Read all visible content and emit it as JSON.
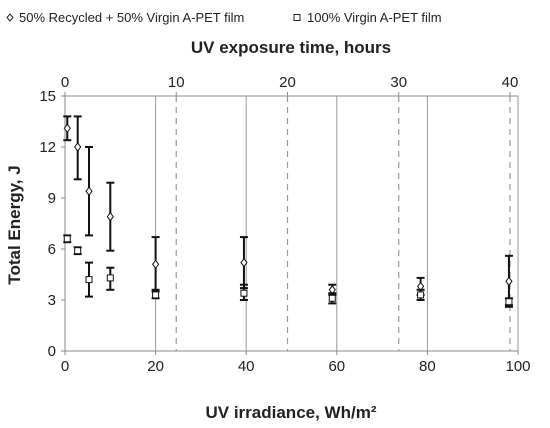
{
  "chart_data": {
    "type": "scatter",
    "title": "",
    "xlabel": "UV irradiance, Wh/m²",
    "x2label": "UV exposure time, hours",
    "ylabel": "Total Energy, J",
    "xlim": [
      0,
      100
    ],
    "x2lim": [
      0,
      40
    ],
    "ylim": [
      0,
      15
    ],
    "x_ticks": [
      "0",
      "20",
      "40",
      "60",
      "80",
      "100"
    ],
    "x2_ticks": [
      "0",
      "10",
      "20",
      "30",
      "40"
    ],
    "y_ticks": [
      "0",
      "3",
      "6",
      "9",
      "12",
      "15"
    ],
    "x_tick_values": [
      0,
      20,
      40,
      60,
      80,
      100
    ],
    "x2_tick_values": [
      0,
      10,
      20,
      30,
      40
    ],
    "y_tick_values": [
      0,
      3,
      6,
      9,
      12,
      15
    ],
    "grid": {
      "vertical_solid_at_x": [
        20,
        40,
        60,
        80,
        100
      ],
      "vertical_dashed_at_x2": [
        10,
        20,
        30,
        40
      ]
    },
    "legend_position": "top",
    "series": [
      {
        "name": "50% Recycled + 50% Virgin A-PET film",
        "marker": "diamond",
        "points": [
          {
            "x": 0.5,
            "y": 13.1,
            "low": 12.4,
            "high": 13.8
          },
          {
            "x": 2.8,
            "y": 12.0,
            "low": 10.1,
            "high": 13.8
          },
          {
            "x": 5.3,
            "y": 9.4,
            "low": 6.8,
            "high": 12.0
          },
          {
            "x": 10.0,
            "y": 7.9,
            "low": 5.9,
            "high": 9.9
          },
          {
            "x": 20.0,
            "y": 5.1,
            "low": 3.5,
            "high": 6.7
          },
          {
            "x": 39.5,
            "y": 5.2,
            "low": 3.7,
            "high": 6.7
          },
          {
            "x": 59.0,
            "y": 3.6,
            "low": 3.3,
            "high": 3.9
          },
          {
            "x": 78.5,
            "y": 3.8,
            "low": 3.3,
            "high": 4.3
          },
          {
            "x": 98.0,
            "y": 4.1,
            "low": 2.6,
            "high": 5.6
          }
        ]
      },
      {
        "name": "100% Virgin A-PET film",
        "marker": "square",
        "points": [
          {
            "x": 0.5,
            "y": 6.6,
            "low": 6.4,
            "high": 6.8
          },
          {
            "x": 2.8,
            "y": 5.9,
            "low": 5.7,
            "high": 6.1
          },
          {
            "x": 5.3,
            "y": 4.2,
            "low": 3.2,
            "high": 5.2
          },
          {
            "x": 10.0,
            "y": 4.3,
            "low": 3.6,
            "high": 4.9
          },
          {
            "x": 20.0,
            "y": 3.3,
            "low": 3.1,
            "high": 3.6
          },
          {
            "x": 39.5,
            "y": 3.4,
            "low": 3.0,
            "high": 3.9
          },
          {
            "x": 59.0,
            "y": 3.1,
            "low": 2.8,
            "high": 3.4
          },
          {
            "x": 78.5,
            "y": 3.3,
            "low": 3.0,
            "high": 3.6
          },
          {
            "x": 98.0,
            "y": 2.9,
            "low": 2.7,
            "high": 3.1
          }
        ]
      }
    ]
  }
}
